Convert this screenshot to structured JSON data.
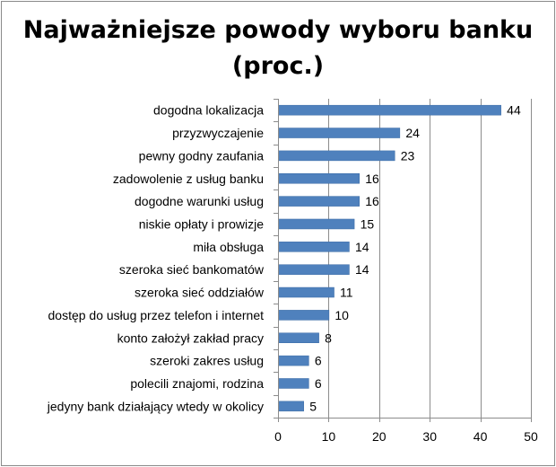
{
  "chart_data": {
    "type": "bar",
    "orientation": "horizontal",
    "title": "Najważniejsze powody wyboru banku (proc.)",
    "categories": [
      "dogodna lokalizacja",
      "przyzwyczajenie",
      "pewny godny zaufania",
      "zadowolenie z usług banku",
      "dogodne warunki usług",
      "niskie opłaty i prowizje",
      "miła obsługa",
      "szeroka sieć bankomatów",
      "szeroka sieć oddziałów",
      "dostęp do usług przez telefon i internet",
      "konto założył zakład pracy",
      "szeroki zakres usług",
      "polecili znajomi, rodzina",
      "jedyny bank działający wtedy w okolicy"
    ],
    "values": [
      44,
      24,
      23,
      16,
      16,
      15,
      14,
      14,
      11,
      10,
      8,
      6,
      6,
      5
    ],
    "xlim": [
      0,
      50
    ],
    "xticks": [
      0,
      10,
      20,
      30,
      40,
      50
    ],
    "grid": true,
    "data_labels": true,
    "bar_color": "#4f81bd",
    "bar_border_color": "#3a6aa5",
    "grid_color": "#8c8c8c"
  }
}
